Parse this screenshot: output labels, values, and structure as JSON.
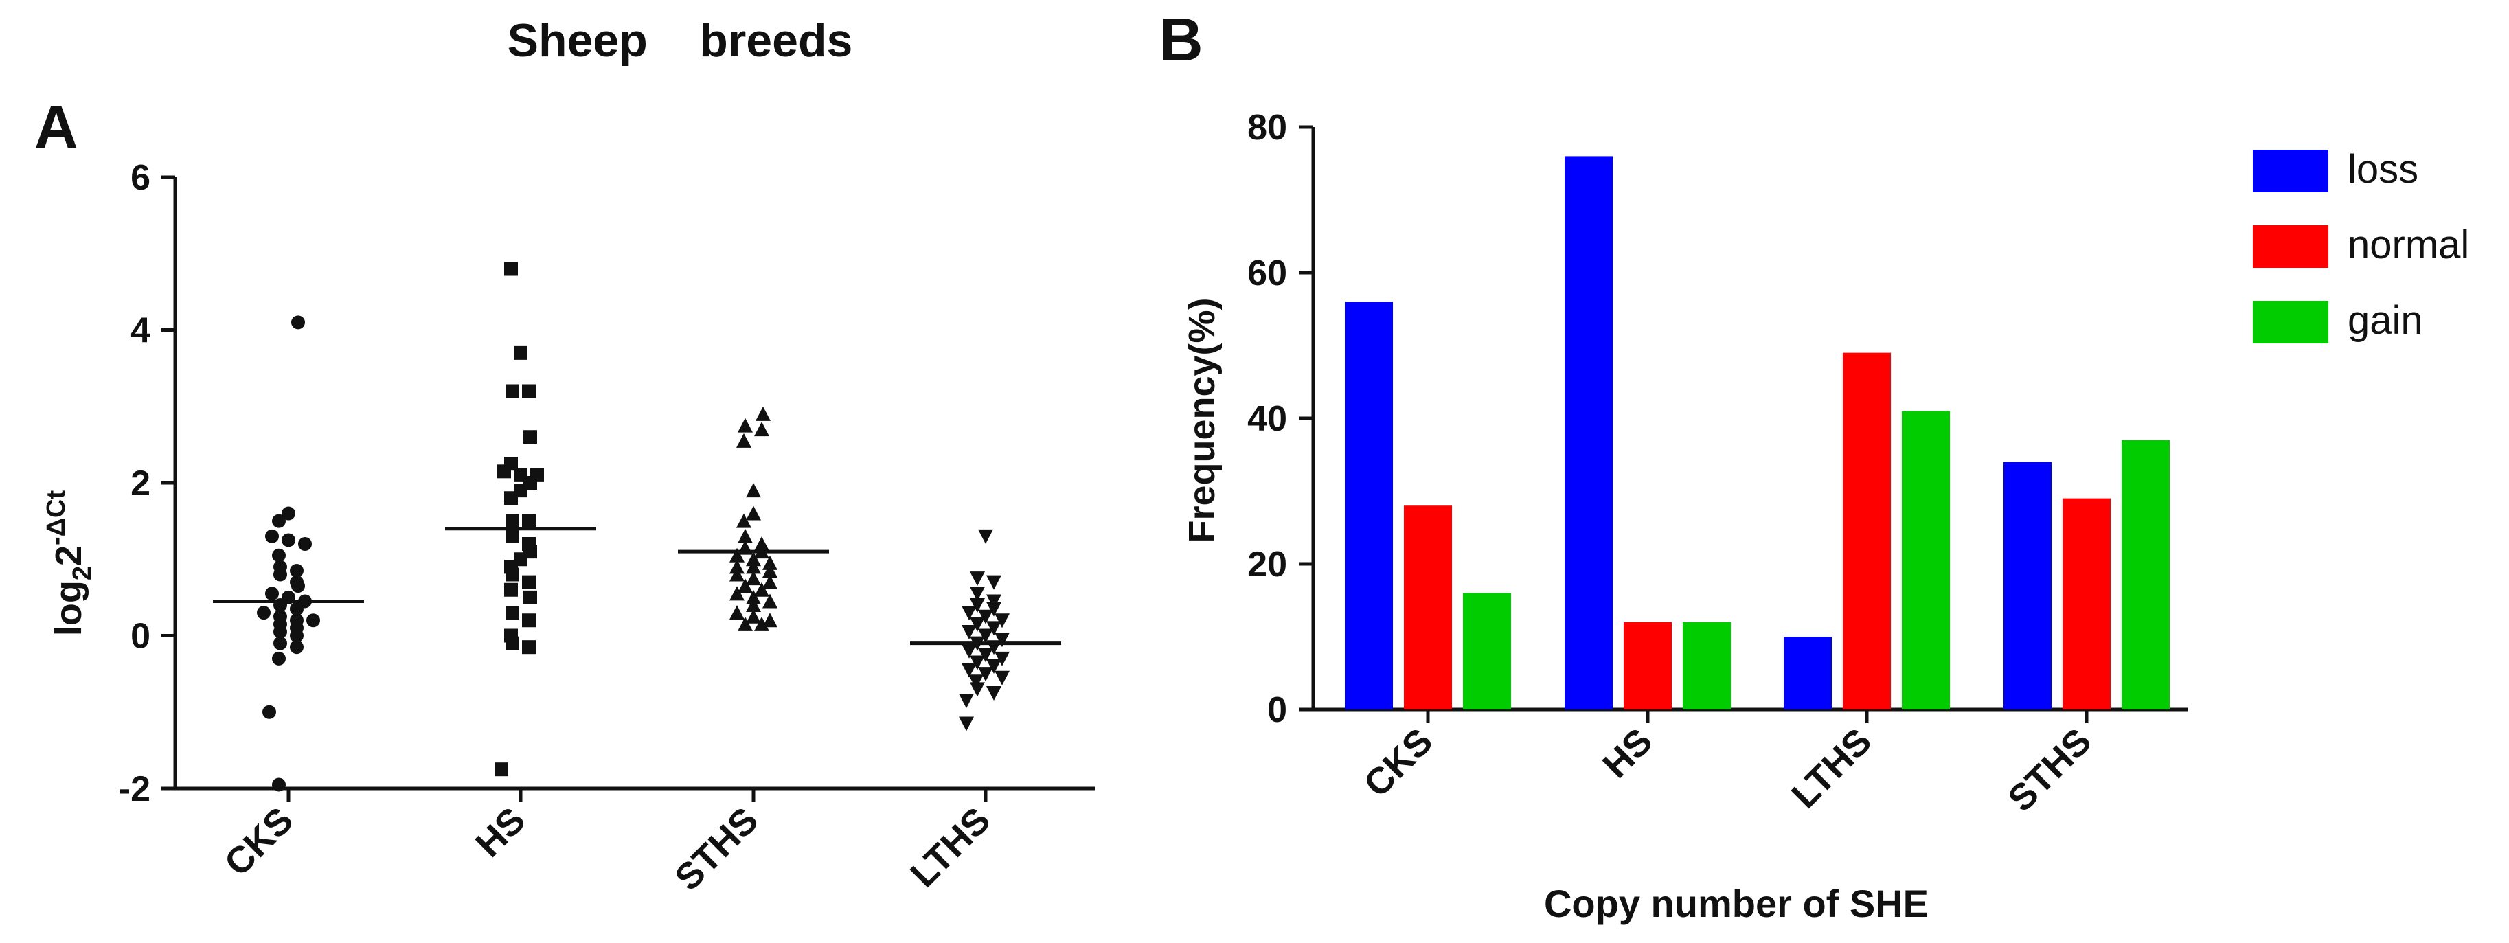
{
  "chart_data": [
    {
      "panel_label": "A",
      "type": "scatter",
      "title": "Sheep    breeds",
      "ylabel": {
        "base": "log",
        "sub": "2",
        "main": "2",
        "sup": "-ΔCt"
      },
      "ylim": [
        -2,
        6
      ],
      "yticks": [
        -2,
        0,
        2,
        4,
        6
      ],
      "categories": [
        "CKS",
        "HS",
        "STHS",
        "LTHS"
      ],
      "markers": [
        "circle",
        "square",
        "triangle-up",
        "triangle-down"
      ],
      "means": [
        0.45,
        1.4,
        1.1,
        -0.1
      ],
      "points": [
        [
          4.1,
          1.6,
          1.5,
          1.3,
          1.25,
          1.2,
          1.05,
          0.9,
          0.85,
          0.8,
          0.7,
          0.65,
          0.55,
          0.5,
          0.45,
          0.4,
          0.35,
          0.3,
          0.25,
          0.2,
          0.2,
          0.15,
          0.1,
          0.05,
          0.0,
          -0.1,
          -0.15,
          -0.3,
          -1.0,
          -1.95
        ],
        [
          4.8,
          3.7,
          3.2,
          3.2,
          2.6,
          2.25,
          2.15,
          2.1,
          2.1,
          2.0,
          1.9,
          1.8,
          1.5,
          1.5,
          1.3,
          1.2,
          1.1,
          1.0,
          0.9,
          0.8,
          0.7,
          0.6,
          0.5,
          0.3,
          0.2,
          0.0,
          -0.1,
          -0.15,
          -1.75
        ],
        [
          2.9,
          2.75,
          2.7,
          2.55,
          1.9,
          1.6,
          1.5,
          1.3,
          1.2,
          1.15,
          1.1,
          1.05,
          1.0,
          0.95,
          0.9,
          0.9,
          0.85,
          0.8,
          0.75,
          0.7,
          0.65,
          0.6,
          0.55,
          0.5,
          0.45,
          0.4,
          0.3,
          0.25,
          0.2,
          0.15,
          0.15
        ],
        [
          1.3,
          0.75,
          0.7,
          0.55,
          0.45,
          0.4,
          0.35,
          0.3,
          0.25,
          0.2,
          0.15,
          0.1,
          0.05,
          0.0,
          -0.05,
          -0.1,
          -0.15,
          -0.2,
          -0.25,
          -0.3,
          -0.35,
          -0.4,
          -0.45,
          -0.5,
          -0.55,
          -0.6,
          -0.7,
          -0.75,
          -0.85,
          -1.15
        ]
      ]
    },
    {
      "panel_label": "B",
      "type": "bar",
      "xlabel": "Copy number of SHE",
      "ylabel": "Frequency(%)",
      "ylim": [
        0,
        80
      ],
      "yticks": [
        0,
        20,
        40,
        60,
        80
      ],
      "categories": [
        "CKS",
        "HS",
        "LTHS",
        "STHS"
      ],
      "series": [
        {
          "name": "loss",
          "color": "#0000ff",
          "values": [
            56,
            76,
            10,
            34
          ]
        },
        {
          "name": "normal",
          "color": "#ff0000",
          "values": [
            28,
            12,
            49,
            29
          ]
        },
        {
          "name": "gain",
          "color": "#00cc00",
          "values": [
            16,
            12,
            41,
            37
          ]
        }
      ],
      "legend_position": "top-right"
    }
  ]
}
